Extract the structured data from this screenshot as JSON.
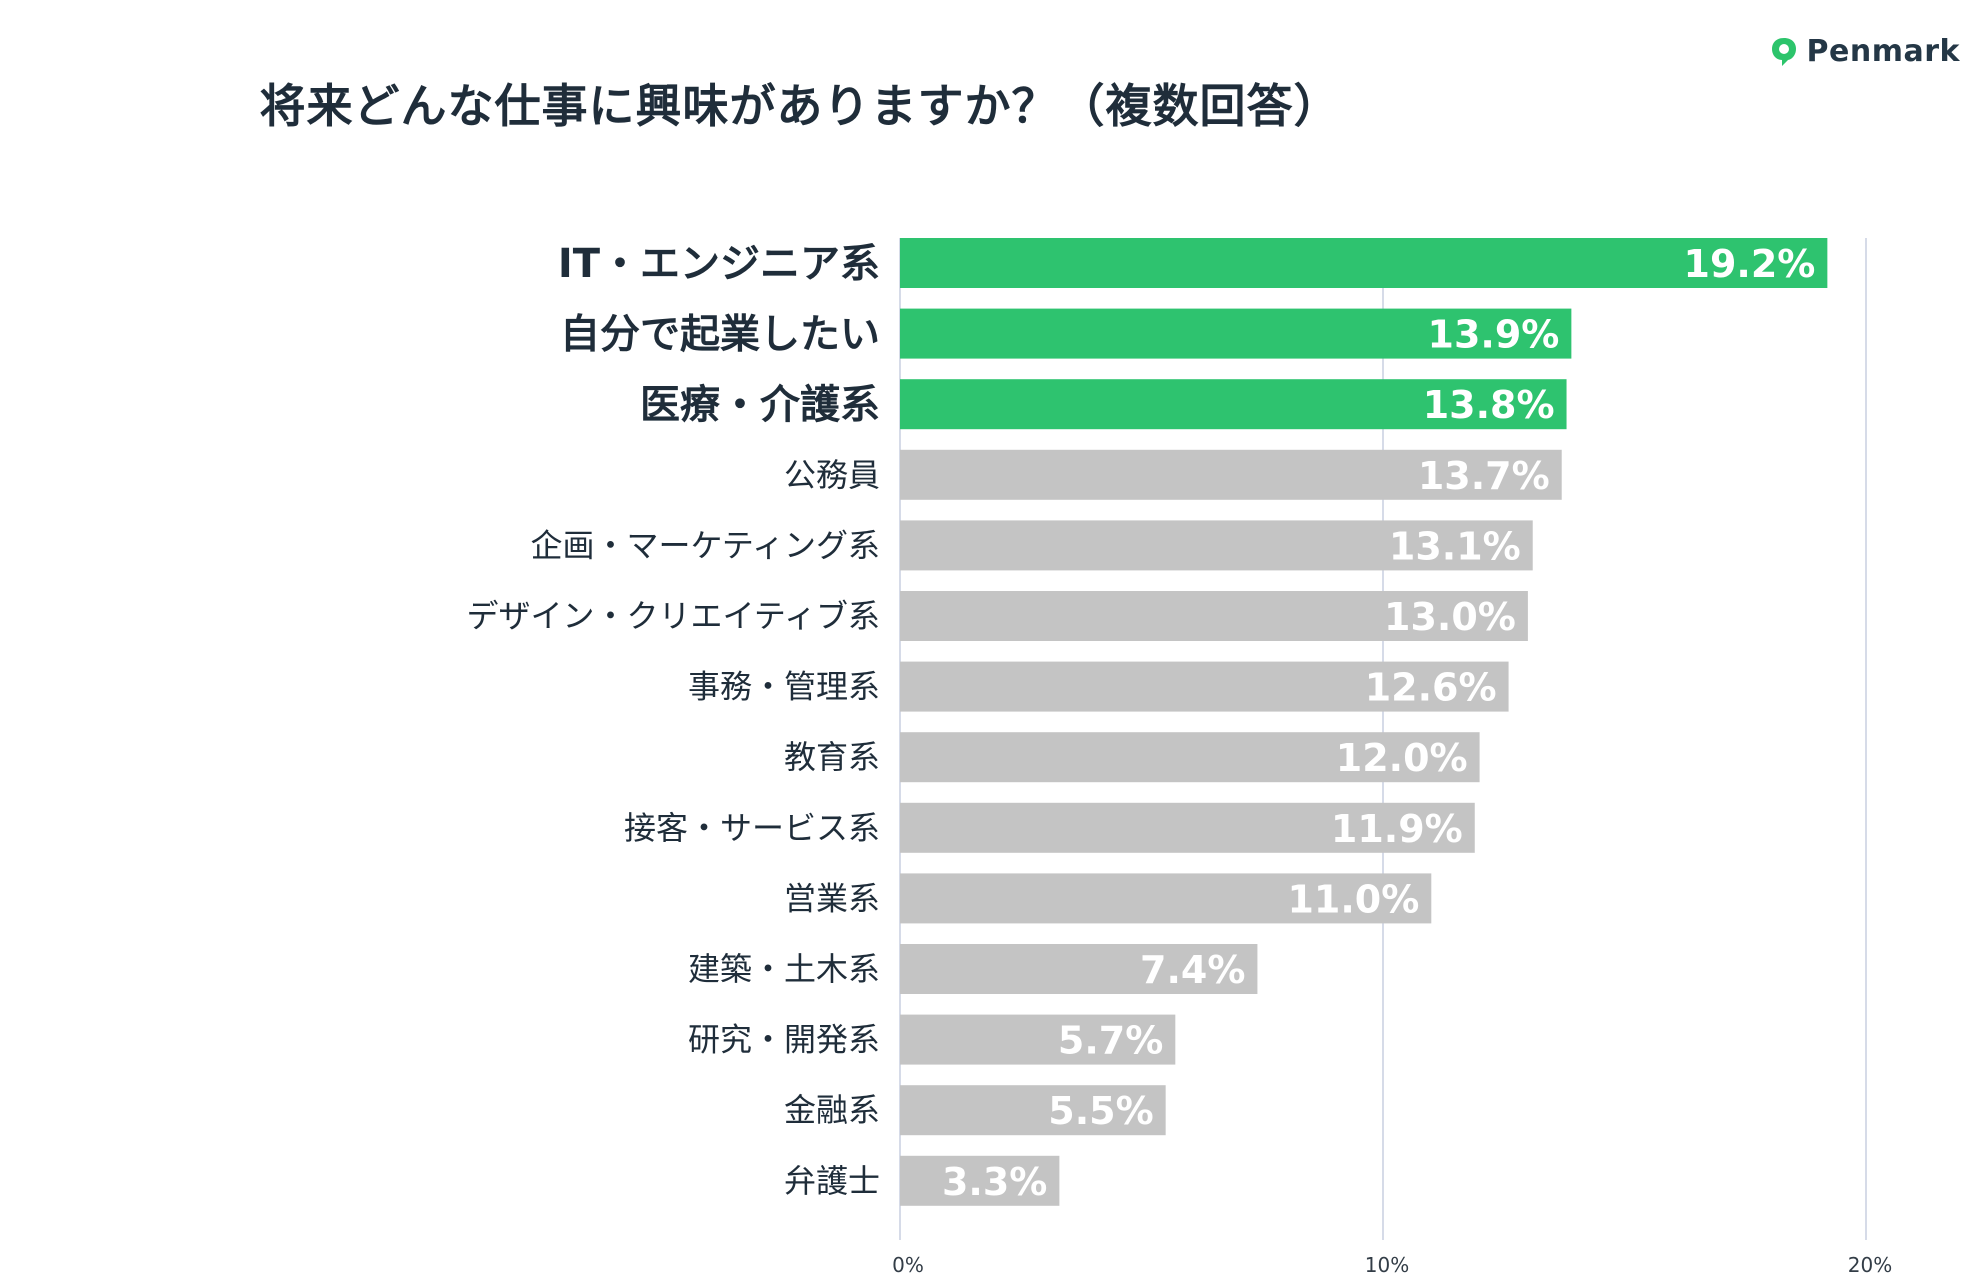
{
  "brand": {
    "name": "Penmark",
    "icon": "speech-bubble-icon",
    "color": "#2cc46b"
  },
  "chart_data": {
    "type": "bar",
    "orientation": "horizontal",
    "title": "将来どんな仕事に興味がありますか？（複数回答）",
    "categories": [
      "IT・エンジニア系",
      "自分で起業したい",
      "医療・介護系",
      "公務員",
      "企画・マーケティング系",
      "デザイン・クリエイティブ系",
      "事務・管理系",
      "教育系",
      "接客・サービス系",
      "営業系",
      "建築・土木系",
      "研究・開発系",
      "金融系",
      "弁護士"
    ],
    "values": [
      19.2,
      13.9,
      13.8,
      13.7,
      13.1,
      13.0,
      12.6,
      12.0,
      11.9,
      11.0,
      7.4,
      5.7,
      5.5,
      3.3
    ],
    "value_labels": [
      "19.2%",
      "13.9%",
      "13.8%",
      "13.7%",
      "13.1%",
      "13.0%",
      "12.6%",
      "12.0%",
      "11.9%",
      "11.0%",
      "7.4%",
      "5.7%",
      "5.5%",
      "3.3%"
    ],
    "highlighted": [
      true,
      true,
      true,
      false,
      false,
      false,
      false,
      false,
      false,
      false,
      false,
      false,
      false,
      false
    ],
    "xlim": [
      0,
      20
    ],
    "xticks": [
      0,
      10,
      20
    ],
    "xtick_labels": [
      "0%",
      "10%",
      "20%"
    ],
    "grid": true,
    "legend": "none",
    "colors": {
      "highlight": "#2ec36f",
      "default": "#c4c4c4",
      "grid": "#c9cfe0",
      "label_text": "#1f2d3a",
      "value_text": "#ffffff"
    }
  }
}
